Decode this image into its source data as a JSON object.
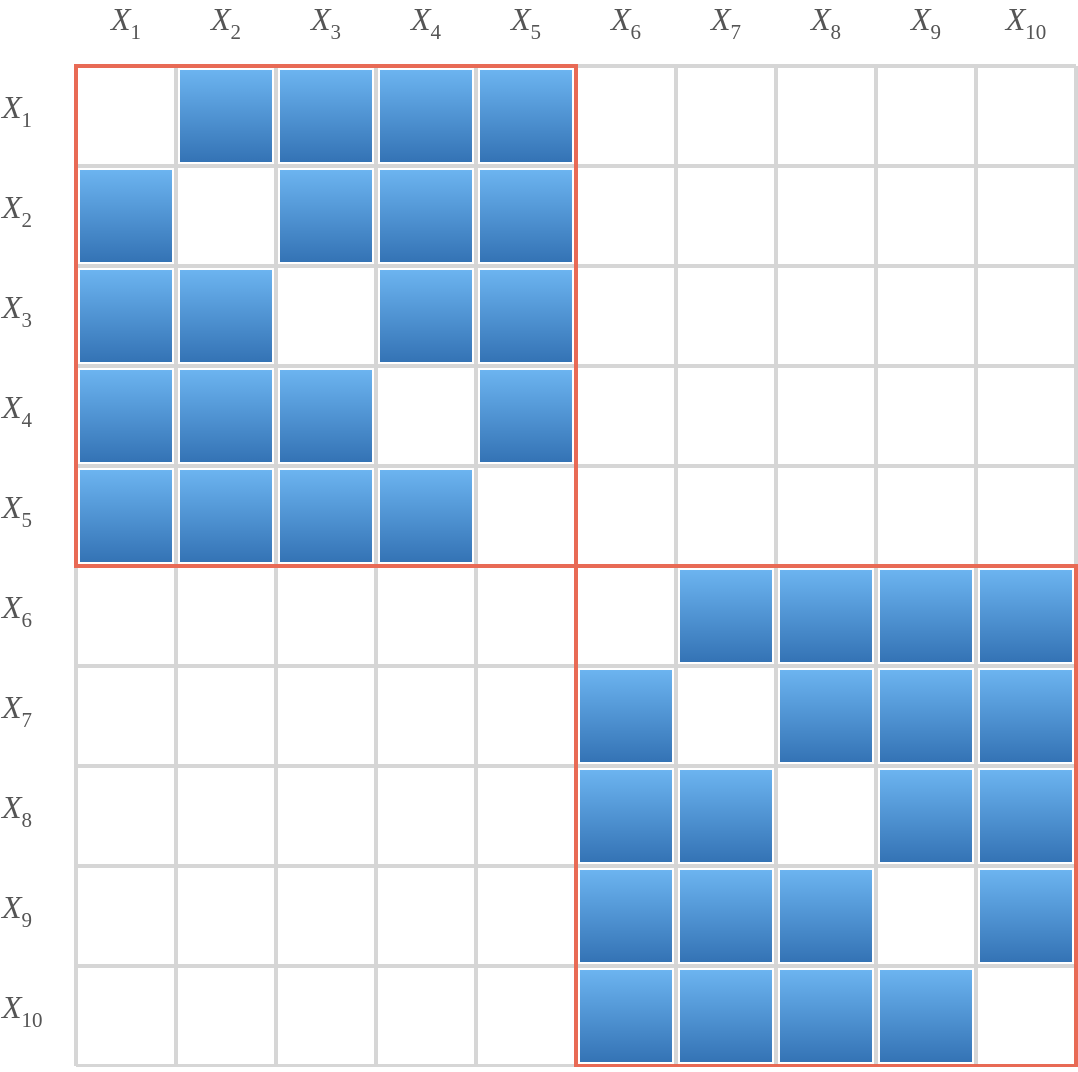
{
  "diagram": {
    "variable_symbol": "X",
    "column_labels": [
      {
        "base": "X",
        "sub": "1"
      },
      {
        "base": "X",
        "sub": "2"
      },
      {
        "base": "X",
        "sub": "3"
      },
      {
        "base": "X",
        "sub": "4"
      },
      {
        "base": "X",
        "sub": "5"
      },
      {
        "base": "X",
        "sub": "6"
      },
      {
        "base": "X",
        "sub": "7"
      },
      {
        "base": "X",
        "sub": "8"
      },
      {
        "base": "X",
        "sub": "9"
      },
      {
        "base": "X",
        "sub": "10"
      }
    ],
    "row_labels": [
      {
        "base": "X",
        "sub": "1"
      },
      {
        "base": "X",
        "sub": "2"
      },
      {
        "base": "X",
        "sub": "3"
      },
      {
        "base": "X",
        "sub": "4"
      },
      {
        "base": "X",
        "sub": "5"
      },
      {
        "base": "X",
        "sub": "6"
      },
      {
        "base": "X",
        "sub": "7"
      },
      {
        "base": "X",
        "sub": "8"
      },
      {
        "base": "X",
        "sub": "9"
      },
      {
        "base": "X",
        "sub": "10"
      }
    ],
    "matrix": [
      [
        0,
        1,
        1,
        1,
        1,
        0,
        0,
        0,
        0,
        0
      ],
      [
        1,
        0,
        1,
        1,
        1,
        0,
        0,
        0,
        0,
        0
      ],
      [
        1,
        1,
        0,
        1,
        1,
        0,
        0,
        0,
        0,
        0
      ],
      [
        1,
        1,
        1,
        0,
        1,
        0,
        0,
        0,
        0,
        0
      ],
      [
        1,
        1,
        1,
        1,
        0,
        0,
        0,
        0,
        0,
        0
      ],
      [
        0,
        0,
        0,
        0,
        0,
        0,
        1,
        1,
        1,
        1
      ],
      [
        0,
        0,
        0,
        0,
        0,
        1,
        0,
        1,
        1,
        1
      ],
      [
        0,
        0,
        0,
        0,
        0,
        1,
        1,
        0,
        1,
        1
      ],
      [
        0,
        0,
        0,
        0,
        0,
        1,
        1,
        1,
        0,
        1
      ],
      [
        0,
        0,
        0,
        0,
        0,
        1,
        1,
        1,
        1,
        0
      ]
    ],
    "blocks": [
      {
        "first_index": 1,
        "last_index": 5
      },
      {
        "first_index": 6,
        "last_index": 10
      }
    ],
    "colors": {
      "cell_fill_top": "#6cb4f0",
      "cell_fill_bottom": "#3473b5",
      "grid_line": "#d6d6d6",
      "block_outline": "#e86a55",
      "label_text": "#555555"
    }
  }
}
